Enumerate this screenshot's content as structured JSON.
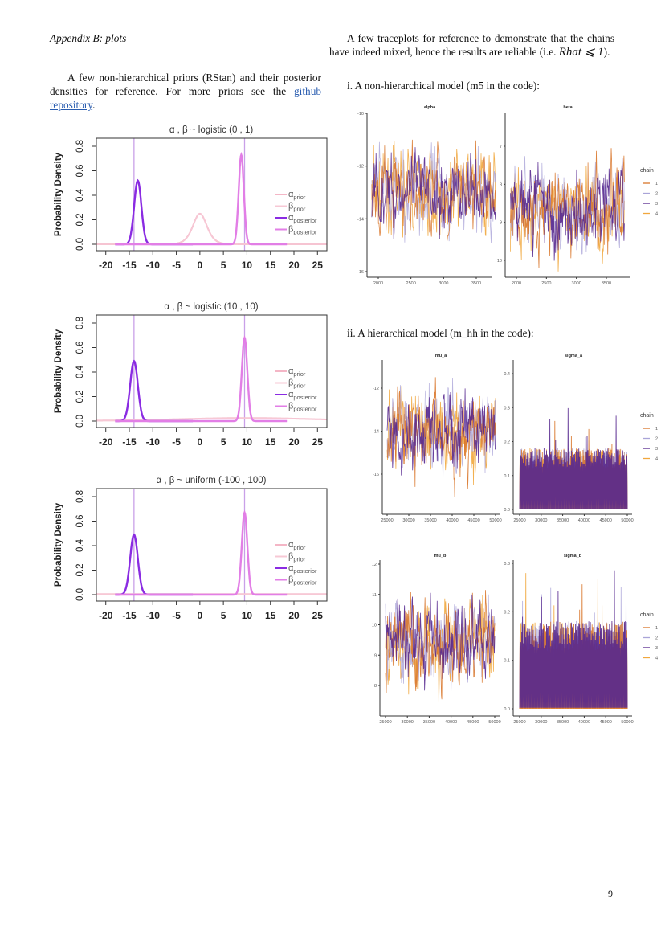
{
  "left_column": {
    "heading": "Appendix B: plots",
    "paragraph_text": "A few non-hierarchical priors (RStan) and their posterior densities for reference. For more priors see the ",
    "link_text": "github repository",
    "paragraph_end": "."
  },
  "right_column": {
    "paragraph_text": "A few traceplots for reference to demonstrate that the chains have indeed mixed, hence the results are reliable (i.e. ",
    "math": "Rhat ⩽ 1",
    "paragraph_end": ").",
    "section_i": "i. A non-hierarchical model (m5 in the code):",
    "section_ii": "ii. A hierarchical model (m_hh in the code):"
  },
  "page_number": "9",
  "colors": {
    "alpha_prior": "#f4b6c6",
    "beta_prior": "#f7c8d5",
    "alpha_posterior": "#8a2be2",
    "beta_posterior": "#e27ee6",
    "reference_line": "#c9a0e8",
    "chain_1": "#d9772b",
    "chain_2": "#aaa4d8",
    "chain_3": "#57288f",
    "chain_4": "#f1a73d",
    "link": "#2a5db0"
  },
  "chart_data": [
    {
      "type": "line",
      "title": "α , β ~ logistic (0 , 1)",
      "ylabel": "Probability Density",
      "xlim": [
        -22,
        27
      ],
      "ylim": [
        0,
        0.85
      ],
      "xticks": [
        -20,
        -15,
        -10,
        -5,
        0,
        5,
        10,
        15,
        20,
        25
      ],
      "yticks": [
        "0.0",
        "0.2",
        "0.4",
        "0.6",
        "0.8"
      ],
      "prior": {
        "dist": "logistic",
        "location": 0,
        "scale": 1
      },
      "alpha_posterior": {
        "mode": -13.2,
        "peak": 0.52
      },
      "beta_posterior": {
        "mode": 8.8,
        "peak": 0.73
      },
      "reference_lines": [
        -14,
        9.5
      ],
      "legend": [
        {
          "label": "α",
          "sub": "prior"
        },
        {
          "label": "β",
          "sub": "prior"
        },
        {
          "label": "α",
          "sub": "posterior"
        },
        {
          "label": "β",
          "sub": "posterior"
        }
      ],
      "legend_position": "right"
    },
    {
      "type": "line",
      "title": "α , β ~ logistic (10 , 10)",
      "ylabel": "Probability Density",
      "xlim": [
        -22,
        27
      ],
      "ylim": [
        0,
        0.85
      ],
      "xticks": [
        -20,
        -15,
        -10,
        -5,
        0,
        5,
        10,
        15,
        20,
        25
      ],
      "yticks": [
        "0.0",
        "0.2",
        "0.4",
        "0.6",
        "0.8"
      ],
      "prior": {
        "dist": "logistic",
        "location": 10,
        "scale": 10
      },
      "alpha_posterior": {
        "mode": -14,
        "peak": 0.49
      },
      "beta_posterior": {
        "mode": 9.5,
        "peak": 0.68
      },
      "reference_lines": [
        -14,
        9.5
      ],
      "legend": [
        {
          "label": "α",
          "sub": "prior"
        },
        {
          "label": "β",
          "sub": "prior"
        },
        {
          "label": "α",
          "sub": "posterior"
        },
        {
          "label": "β",
          "sub": "posterior"
        }
      ],
      "legend_position": "right"
    },
    {
      "type": "line",
      "title": "α , β ~ uniform (-100 , 100)",
      "ylabel": "Probability Density",
      "xlim": [
        -22,
        27
      ],
      "ylim": [
        0,
        0.85
      ],
      "xticks": [
        -20,
        -15,
        -10,
        -5,
        0,
        5,
        10,
        15,
        20,
        25
      ],
      "yticks": [
        "0.0",
        "0.2",
        "0.4",
        "0.6",
        "0.8"
      ],
      "prior": {
        "dist": "uniform",
        "min": -100,
        "max": 100
      },
      "alpha_posterior": {
        "mode": -14,
        "peak": 0.49
      },
      "beta_posterior": {
        "mode": 9.5,
        "peak": 0.67
      },
      "reference_lines": [
        -14,
        9.5
      ],
      "legend": [
        {
          "label": "α",
          "sub": "prior"
        },
        {
          "label": "β",
          "sub": "prior"
        },
        {
          "label": "α",
          "sub": "posterior"
        },
        {
          "label": "β",
          "sub": "posterior"
        }
      ],
      "legend_position": "right"
    },
    {
      "type": "line",
      "group": "m5",
      "title": "alpha",
      "xlim": [
        1900,
        3800
      ],
      "ylim": [
        -16,
        -10
      ],
      "xticks": [
        "2000",
        "2500",
        "3000",
        "3500"
      ],
      "ytick_values": [
        -16,
        -14,
        -12,
        -10
      ],
      "yticks": [
        "-16",
        "-14",
        "-12",
        "-10"
      ],
      "approx_mean": -13,
      "approx_range": [
        -15.9,
        -10.3
      ]
    },
    {
      "type": "line",
      "group": "m5",
      "title": "beta",
      "xlim": [
        1900,
        3800
      ],
      "ylim": [
        6.6,
        10.9
      ],
      "xticks": [
        "2000",
        "2500",
        "3000",
        "3500"
      ],
      "ytick_values": [
        7,
        8,
        9,
        10
      ],
      "yticks": [
        "7",
        "8",
        "9",
        "10"
      ],
      "approx_mean": 8.7,
      "approx_range": [
        6.8,
        10.7
      ],
      "legend_title": "chain",
      "legend": [
        "1",
        "2",
        "3",
        "4"
      ]
    },
    {
      "type": "line",
      "group": "m_hh",
      "title": "mu_a",
      "xlim": [
        25000,
        50000
      ],
      "ylim": [
        -17.9,
        -10.9
      ],
      "xticks": [
        "25000",
        "30000",
        "35000",
        "40000",
        "45000",
        "50000"
      ],
      "ytick_values": [
        -16,
        -14,
        -12
      ],
      "yticks": [
        "-16",
        "-14",
        "-12"
      ],
      "approx_mean": -14,
      "approx_range": [
        -17.7,
        -11.1
      ]
    },
    {
      "type": "line",
      "group": "m_hh",
      "title": "sigma_a",
      "xlim": [
        25000,
        50000
      ],
      "ylim": [
        0,
        0.44
      ],
      "xticks": [
        "25000",
        "30000",
        "35000",
        "40000",
        "45000",
        "50000"
      ],
      "ytick_values": [
        0,
        0.1,
        0.2,
        0.3,
        0.4
      ],
      "yticks": [
        "0.0",
        "0.1",
        "0.2",
        "0.3",
        "0.4"
      ],
      "approx_mean": 0.1,
      "approx_range": [
        0,
        0.42
      ],
      "legend_title": "chain",
      "legend": [
        "1",
        "2",
        "3",
        "4"
      ]
    },
    {
      "type": "line",
      "group": "m_hh",
      "title": "mu_b",
      "xlim": [
        25000,
        50000
      ],
      "ylim": [
        7,
        12.1
      ],
      "xticks": [
        "25000",
        "30000",
        "35000",
        "40000",
        "45000",
        "50000"
      ],
      "ytick_values": [
        8,
        9,
        10,
        11,
        12
      ],
      "yticks": [
        "8",
        "9",
        "10",
        "11",
        "12"
      ],
      "approx_mean": 9.5,
      "approx_range": [
        7.2,
        11.9
      ]
    },
    {
      "type": "line",
      "group": "m_hh",
      "title": "sigma_b",
      "xlim": [
        25000,
        50000
      ],
      "ylim": [
        0,
        0.31
      ],
      "xticks": [
        "25000",
        "30000",
        "35000",
        "40000",
        "45000",
        "50000"
      ],
      "ytick_values": [
        0,
        0.1,
        0.2,
        0.3
      ],
      "yticks": [
        "0.0",
        "0.1",
        "0.2",
        "0.3"
      ],
      "approx_mean": 0.08,
      "approx_range": [
        0,
        0.29
      ],
      "legend_title": "chain",
      "legend": [
        "1",
        "2",
        "3",
        "4"
      ]
    }
  ]
}
